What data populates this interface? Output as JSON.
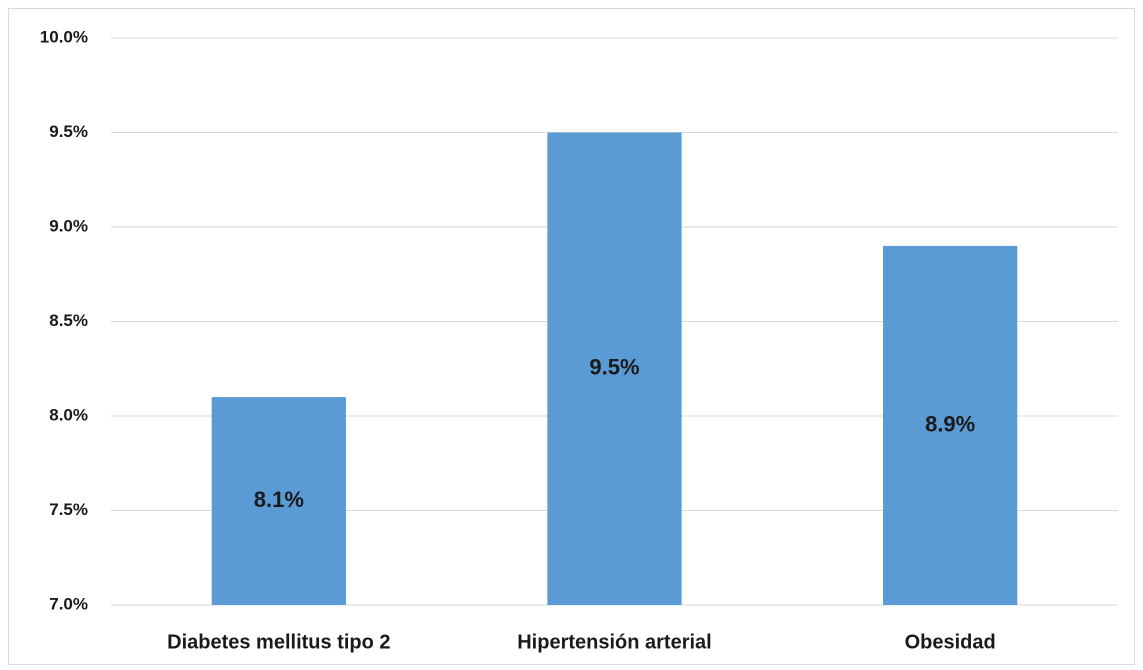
{
  "chart_data": {
    "type": "bar",
    "categories": [
      "Diabetes mellitus tipo 2",
      "Hipertensión arterial",
      "Obesidad"
    ],
    "values": [
      8.1,
      9.5,
      8.9
    ],
    "value_labels": [
      "8.1%",
      "9.5%",
      "8.9%"
    ],
    "color": "#5b9bd5",
    "ylim": [
      7.0,
      10.0
    ],
    "yticks": [
      {
        "value": 7.0,
        "label": "7.0%"
      },
      {
        "value": 7.5,
        "label": "7.5%"
      },
      {
        "value": 8.0,
        "label": "8.0%"
      },
      {
        "value": 8.5,
        "label": "8.5%"
      },
      {
        "value": 9.0,
        "label": "9.0%"
      },
      {
        "value": 9.5,
        "label": "9.5%"
      },
      {
        "value": 10.0,
        "label": "10.0%"
      }
    ],
    "grid": true
  }
}
